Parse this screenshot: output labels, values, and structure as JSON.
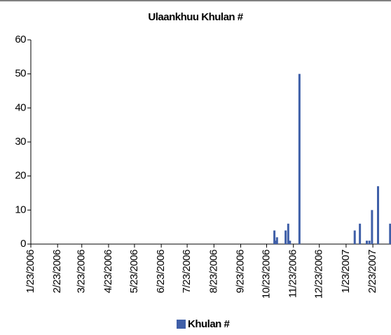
{
  "chart_data": {
    "type": "bar",
    "title": "Ulaankhuu Khulan #",
    "x": [
      "11/1/2006",
      "11/2/2006",
      "11/4/2006",
      "11/14/2006",
      "11/17/2006",
      "11/19/2006",
      "11/30/2006",
      "2/2/2007",
      "2/8/2007",
      "2/16/2007",
      "2/19/2007",
      "2/22/2007",
      "3/1/2007",
      "3/15/2007"
    ],
    "series": [
      {
        "name": "Khulan #",
        "color": "#3f5fa8",
        "values": [
          4,
          1,
          2,
          4,
          6,
          1,
          50,
          4,
          6,
          1,
          1,
          10,
          17,
          6
        ]
      }
    ],
    "xlim": [
      "1/23/2006",
      "3/16/2007"
    ],
    "xticks": [
      "1/23/2006",
      "2/23/2006",
      "3/23/2006",
      "4/23/2006",
      "5/23/2006",
      "6/23/2006",
      "7/23/2006",
      "8/23/2006",
      "9/23/2006",
      "10/23/2006",
      "11/23/2006",
      "12/23/2006",
      "1/23/2007",
      "2/23/2007"
    ],
    "ylim": [
      0,
      60
    ],
    "yticks": [
      0,
      10,
      20,
      30,
      40,
      50,
      60
    ],
    "legend": "bottom"
  }
}
